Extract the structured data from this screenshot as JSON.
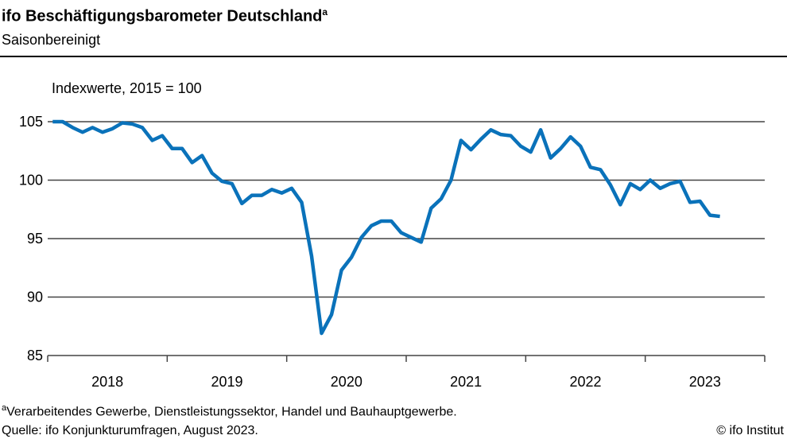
{
  "chart_data": {
    "type": "line",
    "title": "ifo Beschäftigungsbarometer Deutschland",
    "title_superscript": "a",
    "subtitle": "Saisonbereinigt",
    "ylabel": "Indexwerte, 2015 = 100",
    "ylim": [
      85,
      105
    ],
    "yticks": [
      "105",
      "100",
      "95",
      "90",
      "85"
    ],
    "ytick_values": [
      105,
      100,
      95,
      90,
      85
    ],
    "xticks": [
      "2018",
      "2019",
      "2020",
      "2021",
      "2022",
      "2023"
    ],
    "grid": "horizontal",
    "color": "#0a72ba",
    "x_start": "2018-01",
    "x_end": "2023-08",
    "frequency": "monthly",
    "values": [
      105.0,
      105.0,
      104.5,
      104.1,
      104.5,
      104.1,
      104.4,
      104.9,
      104.8,
      104.5,
      103.4,
      103.8,
      102.7,
      102.7,
      101.5,
      102.1,
      100.6,
      99.9,
      99.7,
      98.0,
      98.7,
      98.7,
      99.2,
      98.9,
      99.3,
      98.1,
      93.5,
      86.9,
      88.5,
      92.3,
      93.4,
      95.1,
      96.1,
      96.5,
      96.5,
      95.5,
      95.1,
      94.7,
      97.6,
      98.4,
      100.0,
      103.4,
      102.6,
      103.5,
      104.3,
      103.9,
      103.8,
      102.9,
      102.4,
      104.3,
      101.9,
      102.7,
      103.7,
      102.9,
      101.1,
      100.9,
      99.6,
      97.9,
      99.7,
      99.2,
      100.0,
      99.3,
      99.7,
      99.9,
      98.1,
      98.2,
      97.0,
      96.9
    ]
  },
  "footnote_mark": "a",
  "footnote": "Verarbeitendes  Gewerbe,  Dienstleistungssektor,  Handel und Bauhauptgewerbe.",
  "source": "Quelle:  ifo Konjunkturumfragen,  August 2023.",
  "copyright": "© ifo Institut"
}
